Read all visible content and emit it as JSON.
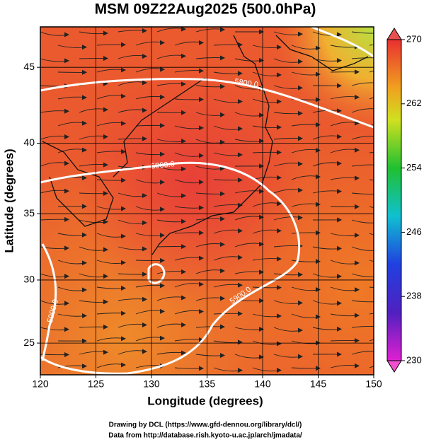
{
  "map": {
    "title": "MSM 09Z22Aug2025 (500.0hPa)",
    "x_label": "Longitude (degrees)",
    "y_label": "Latitude (degrees)",
    "projection": "mercator",
    "xlim": [
      120,
      150
    ],
    "ylim": [
      22.4,
      47.5
    ],
    "xticks": [
      120,
      125,
      130,
      135,
      140,
      145,
      150
    ],
    "yticks": [
      25,
      30,
      35,
      40,
      45
    ],
    "grid": true,
    "contour_labels": [
      "5800.0",
      "5900.0",
      "5900.0",
      "5900.0"
    ],
    "colorbar": {
      "lim": [
        230,
        270
      ],
      "ticks": [
        230,
        238,
        246,
        254,
        262,
        270
      ]
    },
    "footer": [
      "Drawing by DCL (https://www.gfd-dennou.org/library/dcl/)",
      "Data from http://database.rish.kyoto-u.ac.jp/arch/jmadata/"
    ]
  }
}
